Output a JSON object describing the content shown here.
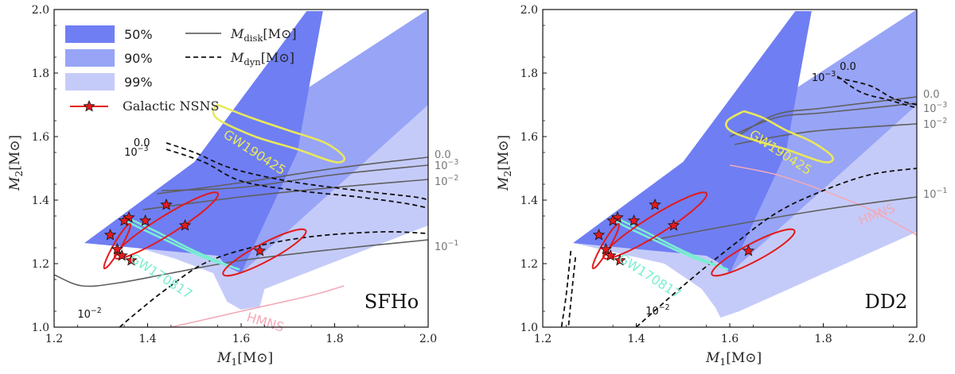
{
  "chart_data": [
    {
      "type": "contour",
      "eos_label": "SFHo",
      "xlabel": "M_1[M_⊙]",
      "ylabel": "M_2[M_⊙]",
      "xlim": [
        1.2,
        2.0
      ],
      "ylim": [
        1.0,
        2.0
      ],
      "xticks": [
        "1.2",
        "1.4",
        "1.6",
        "1.8",
        "2.0"
      ],
      "yticks": [
        "1.0",
        "1.2",
        "1.4",
        "1.6",
        "1.8",
        "2.0"
      ],
      "legend": {
        "regions": [
          {
            "label": "50%",
            "color": "#6f7ef3"
          },
          {
            "label": "90%",
            "color": "#98a4f6"
          },
          {
            "label": "99%",
            "color": "#c5cbf9"
          }
        ],
        "lines": [
          {
            "label": "M_disk[M_⊙]",
            "style": "solid"
          },
          {
            "label": "M_dyn[M_⊙]",
            "style": "dashed"
          }
        ],
        "marker": {
          "label": "Galactic NSNS"
        }
      },
      "regions": [
        {
          "level": "99%",
          "polygon": [
            [
              1.265,
              1.265
            ],
            [
              1.32,
              1.272
            ],
            [
              1.38,
              1.25
            ],
            [
              1.46,
              1.215
            ],
            [
              1.54,
              1.17
            ],
            [
              1.57,
              1.08
            ],
            [
              1.6,
              1.055
            ],
            [
              1.64,
              1.065
            ],
            [
              1.65,
              1.12
            ],
            [
              2.0,
              1.32
            ],
            [
              2.0,
              2.0
            ],
            [
              1.5,
              1.52
            ]
          ]
        },
        {
          "level": "90%",
          "polygon": [
            [
              1.265,
              1.265
            ],
            [
              1.55,
              1.225
            ],
            [
              1.57,
              1.19
            ],
            [
              1.6,
              1.17
            ],
            [
              2.0,
              1.7
            ],
            [
              2.0,
              2.0
            ],
            [
              1.5,
              1.52
            ]
          ]
        },
        {
          "level": "50%",
          "polygon": [
            [
              1.265,
              1.265
            ],
            [
              1.55,
              1.225
            ],
            [
              1.57,
              1.19
            ],
            [
              1.6,
              1.17
            ],
            [
              1.72,
              1.55
            ],
            [
              1.775,
              1.995
            ],
            [
              1.74,
              1.995
            ],
            [
              1.5,
              1.52
            ]
          ]
        }
      ],
      "disk_contours": [
        {
          "label": "0.0",
          "points": [
            [
              1.42,
              1.42
            ],
            [
              1.6,
              1.455
            ],
            [
              1.8,
              1.5
            ],
            [
              2.0,
              1.535
            ]
          ]
        },
        {
          "label": "10^{-3}",
          "points": [
            [
              1.43,
              1.43
            ],
            [
              1.6,
              1.44
            ],
            [
              1.8,
              1.48
            ],
            [
              2.0,
              1.51
            ]
          ]
        },
        {
          "label": "10^{-2}",
          "points": [
            [
              1.39,
              1.37
            ],
            [
              1.6,
              1.41
            ],
            [
              1.8,
              1.44
            ],
            [
              2.0,
              1.465
            ]
          ]
        },
        {
          "label": "10^{-1}",
          "points": [
            [
              1.2,
              1.165
            ],
            [
              1.26,
              1.13
            ],
            [
              1.34,
              1.14
            ],
            [
              1.45,
              1.17
            ],
            [
              1.6,
              1.21
            ],
            [
              1.8,
              1.245
            ],
            [
              2.0,
              1.275
            ]
          ]
        }
      ],
      "dyn_contours": [
        {
          "label": "0.0",
          "points": [
            [
              1.44,
              1.58
            ],
            [
              1.5,
              1.55
            ],
            [
              1.58,
              1.5
            ],
            [
              1.7,
              1.46
            ],
            [
              1.85,
              1.43
            ],
            [
              1.97,
              1.41
            ],
            [
              2.0,
              1.4
            ]
          ]
        },
        {
          "label": "10^{-3}",
          "points": [
            [
              1.44,
              1.56
            ],
            [
              1.52,
              1.52
            ],
            [
              1.6,
              1.46
            ],
            [
              1.72,
              1.43
            ],
            [
              1.85,
              1.41
            ],
            [
              1.95,
              1.39
            ],
            [
              2.0,
              1.375
            ]
          ]
        },
        {
          "label": "10^{-2}",
          "points": [
            [
              1.34,
              1.0
            ],
            [
              1.38,
              1.05
            ],
            [
              1.44,
              1.12
            ],
            [
              1.52,
              1.2
            ],
            [
              1.62,
              1.25
            ],
            [
              1.75,
              1.285
            ],
            [
              1.9,
              1.3
            ],
            [
              2.0,
              1.295
            ]
          ]
        }
      ],
      "hmns_line": {
        "label": "HMNS",
        "points": [
          [
            1.45,
            1.0
          ],
          [
            1.6,
            1.05
          ],
          [
            1.75,
            1.1
          ],
          [
            1.82,
            1.13
          ]
        ]
      },
      "gw_regions": [
        {
          "label": "GW190425",
          "color": "#e9e85b",
          "points": [
            [
              1.55,
              1.7
            ],
            [
              1.62,
              1.66
            ],
            [
              1.7,
              1.62
            ],
            [
              1.78,
              1.58
            ],
            [
              1.82,
              1.535
            ],
            [
              1.8,
              1.52
            ],
            [
              1.72,
              1.56
            ],
            [
              1.63,
              1.6
            ],
            [
              1.555,
              1.65
            ],
            [
              1.54,
              1.68
            ]
          ]
        },
        {
          "label": "GW170817",
          "color": "#7bedd2",
          "points": [
            [
              1.355,
              1.345
            ],
            [
              1.42,
              1.3
            ],
            [
              1.5,
              1.24
            ],
            [
              1.58,
              1.19
            ],
            [
              1.59,
              1.185
            ],
            [
              1.52,
              1.22
            ],
            [
              1.43,
              1.28
            ],
            [
              1.36,
              1.33
            ]
          ]
        }
      ],
      "galactic_nsns": {
        "stars": [
          [
            1.44,
            1.385
          ],
          [
            1.36,
            1.345
          ],
          [
            1.35,
            1.335
          ],
          [
            1.395,
            1.335
          ],
          [
            1.48,
            1.32
          ],
          [
            1.32,
            1.29
          ],
          [
            1.335,
            1.245
          ],
          [
            1.345,
            1.225
          ],
          [
            1.365,
            1.21
          ],
          [
            1.64,
            1.24
          ]
        ],
        "ellipses": [
          {
            "cx": 1.44,
            "cy": 1.32,
            "rx": 0.13,
            "ry": 0.03,
            "angle": -32
          },
          {
            "cx": 1.335,
            "cy": 1.255,
            "rx": 0.055,
            "ry": 0.012,
            "angle": -60
          },
          {
            "cx": 1.65,
            "cy": 1.235,
            "rx": 0.1,
            "ry": 0.028,
            "angle": -28
          }
        ]
      }
    },
    {
      "type": "contour",
      "eos_label": "DD2",
      "xlabel": "M_1[M_⊙]",
      "ylabel": "M_2[M_⊙]",
      "xlim": [
        1.2,
        2.0
      ],
      "ylim": [
        1.0,
        2.0
      ],
      "xticks": [
        "1.2",
        "1.4",
        "1.6",
        "1.8",
        "2.0"
      ],
      "yticks": [
        "1.0",
        "1.2",
        "1.4",
        "1.6",
        "1.8",
        "2.0"
      ],
      "regions": [
        {
          "level": "99%",
          "polygon": [
            [
              1.265,
              1.265
            ],
            [
              1.46,
              1.2
            ],
            [
              1.54,
              1.12
            ],
            [
              1.57,
              1.06
            ],
            [
              1.58,
              1.03
            ],
            [
              1.62,
              1.05
            ],
            [
              2.0,
              1.3
            ],
            [
              2.0,
              2.0
            ],
            [
              1.5,
              1.52
            ]
          ]
        },
        {
          "level": "90%",
          "polygon": [
            [
              1.265,
              1.265
            ],
            [
              1.55,
              1.225
            ],
            [
              1.58,
              1.2
            ],
            [
              1.6,
              1.17
            ],
            [
              2.0,
              1.7
            ],
            [
              2.0,
              2.0
            ],
            [
              1.5,
              1.52
            ]
          ]
        },
        {
          "level": "50%",
          "polygon": [
            [
              1.265,
              1.265
            ],
            [
              1.55,
              1.225
            ],
            [
              1.58,
              1.2
            ],
            [
              1.6,
              1.17
            ],
            [
              1.72,
              1.55
            ],
            [
              1.775,
              1.995
            ],
            [
              1.74,
              1.995
            ],
            [
              1.5,
              1.52
            ]
          ]
        }
      ],
      "disk_contours": [
        {
          "label": "0.0",
          "points": [
            [
              1.62,
              1.605
            ],
            [
              1.7,
              1.67
            ],
            [
              1.8,
              1.69
            ],
            [
              2.0,
              1.725
            ]
          ]
        },
        {
          "label": "10^{-3}",
          "points": [
            [
              1.6,
              1.6
            ],
            [
              1.7,
              1.66
            ],
            [
              1.8,
              1.675
            ],
            [
              2.0,
              1.705
            ]
          ]
        },
        {
          "label": "10^{-2}",
          "points": [
            [
              1.61,
              1.575
            ],
            [
              1.7,
              1.6
            ],
            [
              1.8,
              1.62
            ],
            [
              2.0,
              1.64
            ]
          ]
        },
        {
          "label": "10^{-1}",
          "points": [
            [
              1.42,
              1.27
            ],
            [
              1.6,
              1.32
            ],
            [
              1.8,
              1.37
            ],
            [
              2.0,
              1.41
            ]
          ]
        }
      ],
      "dyn_contours": [
        {
          "label": "0.0",
          "points": [
            [
              1.83,
              1.785
            ],
            [
              1.9,
              1.76
            ],
            [
              1.95,
              1.72
            ],
            [
              2.0,
              1.7
            ]
          ]
        },
        {
          "label": "10^{-3}",
          "points": [
            [
              1.83,
              1.79
            ],
            [
              1.88,
              1.74
            ],
            [
              1.94,
              1.715
            ],
            [
              2.0,
              1.69
            ]
          ]
        },
        {
          "label": "10^{-2}",
          "points": [
            [
              1.4,
              1.0
            ],
            [
              1.5,
              1.13
            ],
            [
              1.6,
              1.25
            ],
            [
              1.7,
              1.36
            ],
            [
              1.8,
              1.43
            ],
            [
              1.9,
              1.48
            ],
            [
              2.0,
              1.5
            ]
          ]
        },
        {
          "label": "",
          "points": [
            [
              1.26,
              1.24
            ],
            [
              1.25,
              1.1
            ],
            [
              1.24,
              1.0
            ]
          ]
        },
        {
          "label": "",
          "points": [
            [
              1.27,
              1.22
            ],
            [
              1.26,
              1.08
            ],
            [
              1.255,
              1.0
            ]
          ]
        }
      ],
      "hmns_line": {
        "label": "HMNS",
        "points": [
          [
            1.6,
            1.51
          ],
          [
            1.7,
            1.48
          ],
          [
            1.8,
            1.43
          ],
          [
            1.9,
            1.37
          ],
          [
            2.0,
            1.29
          ]
        ]
      },
      "gw_regions": [
        {
          "label": "GW190425",
          "color": "#e9e85b",
          "points": [
            [
              1.63,
              1.68
            ],
            [
              1.67,
              1.66
            ],
            [
              1.72,
              1.62
            ],
            [
              1.78,
              1.58
            ],
            [
              1.82,
              1.535
            ],
            [
              1.8,
              1.52
            ],
            [
              1.72,
              1.56
            ],
            [
              1.65,
              1.59
            ],
            [
              1.6,
              1.62
            ],
            [
              1.595,
              1.65
            ]
          ]
        },
        {
          "label": "GW170817",
          "color": "#7bedd2",
          "points": [
            [
              1.355,
              1.345
            ],
            [
              1.42,
              1.3
            ],
            [
              1.5,
              1.24
            ],
            [
              1.58,
              1.19
            ],
            [
              1.59,
              1.185
            ],
            [
              1.52,
              1.22
            ],
            [
              1.43,
              1.28
            ],
            [
              1.36,
              1.33
            ]
          ]
        }
      ],
      "galactic_nsns": {
        "stars": [
          [
            1.44,
            1.385
          ],
          [
            1.36,
            1.345
          ],
          [
            1.35,
            1.335
          ],
          [
            1.395,
            1.335
          ],
          [
            1.48,
            1.32
          ],
          [
            1.32,
            1.29
          ],
          [
            1.335,
            1.245
          ],
          [
            1.345,
            1.225
          ],
          [
            1.365,
            1.21
          ],
          [
            1.64,
            1.24
          ]
        ],
        "ellipses": [
          {
            "cx": 1.44,
            "cy": 1.32,
            "rx": 0.13,
            "ry": 0.03,
            "angle": -32
          },
          {
            "cx": 1.335,
            "cy": 1.255,
            "rx": 0.055,
            "ry": 0.012,
            "angle": -60
          },
          {
            "cx": 1.65,
            "cy": 1.235,
            "rx": 0.1,
            "ry": 0.028,
            "angle": -28
          }
        ]
      }
    }
  ]
}
